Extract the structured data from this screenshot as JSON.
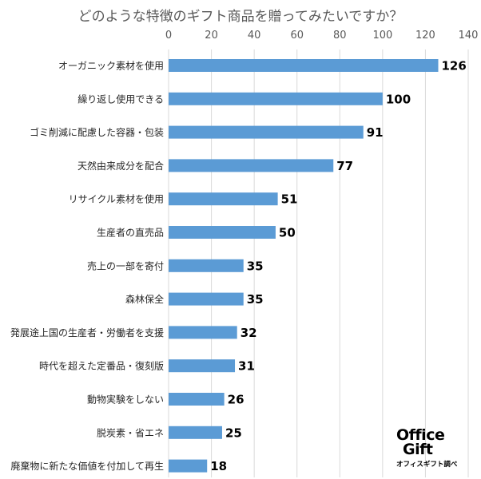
{
  "chart_data": {
    "type": "bar",
    "orientation": "horizontal",
    "title": "どのような特徴のギフト商品を贈ってみたいですか？",
    "categories": [
      "オーガニック素材を使用",
      "繰り返し使用できる",
      "ゴミ削減に配慮した容器・包装",
      "天然由来成分を配合",
      "リサイクル素材を使用",
      "生産者の直売品",
      "売上の一部を寄付",
      "森林保全",
      "発展途上国の生産者・労働者を支援",
      "時代を超えた定番品・復刻版",
      "動物実験をしない",
      "脱炭素・省エネ",
      "廃棄物に新たな価値を付加して再生"
    ],
    "values": [
      126,
      100,
      91,
      77,
      51,
      50,
      35,
      35,
      32,
      31,
      26,
      25,
      18
    ],
    "xlim": [
      0,
      140
    ],
    "xticks": [
      0,
      20,
      40,
      60,
      80,
      100,
      120,
      140
    ],
    "xaxis_position": "top",
    "grid": true,
    "data_labels": true,
    "bar_color": "#5b9bd5",
    "grid_color": "#d9d9d9"
  },
  "logo": {
    "line1": "Office",
    "line2": "Gift",
    "line3": "オフィスギフト調べ"
  }
}
